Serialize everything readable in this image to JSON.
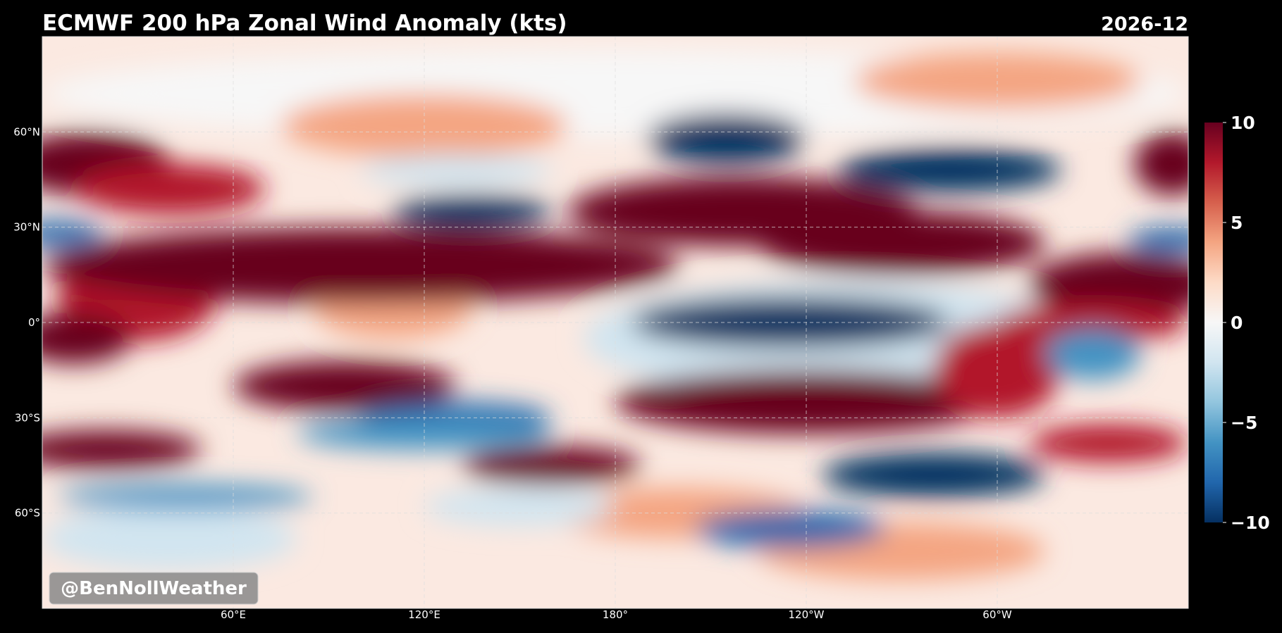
{
  "title": "ECMWF 200 hPa Zonal Wind Anomaly (kts)",
  "date": "2026-12",
  "watermark": "@BenNollWeather",
  "map": {
    "lon_range": [
      0,
      360
    ],
    "lat_range": [
      -90,
      90
    ],
    "grid": true,
    "lat_ticks": [
      {
        "value": 60,
        "label": "60°N"
      },
      {
        "value": 30,
        "label": "30°N"
      },
      {
        "value": 0,
        "label": "0°"
      },
      {
        "value": -30,
        "label": "30°S"
      },
      {
        "value": -60,
        "label": "60°S"
      }
    ],
    "lon_ticks": [
      {
        "value": 60,
        "label": "60°E"
      },
      {
        "value": 120,
        "label": "120°E"
      },
      {
        "value": 180,
        "label": "180°"
      },
      {
        "value": 240,
        "label": "120°W"
      },
      {
        "value": 300,
        "label": "60°W"
      }
    ]
  },
  "colorbar": {
    "lim": [
      -10,
      10
    ],
    "ticks": [
      10,
      5,
      0,
      {
        "value": -5,
        "label": "−5"
      },
      {
        "value": -10,
        "label": "−10"
      }
    ],
    "colormap": [
      "#053061",
      "#2166ac",
      "#4393c3",
      "#92c5de",
      "#d1e5f0",
      "#f7f7f7",
      "#fddbc7",
      "#f4a582",
      "#d6604d",
      "#b2182b",
      "#67001f"
    ]
  }
}
